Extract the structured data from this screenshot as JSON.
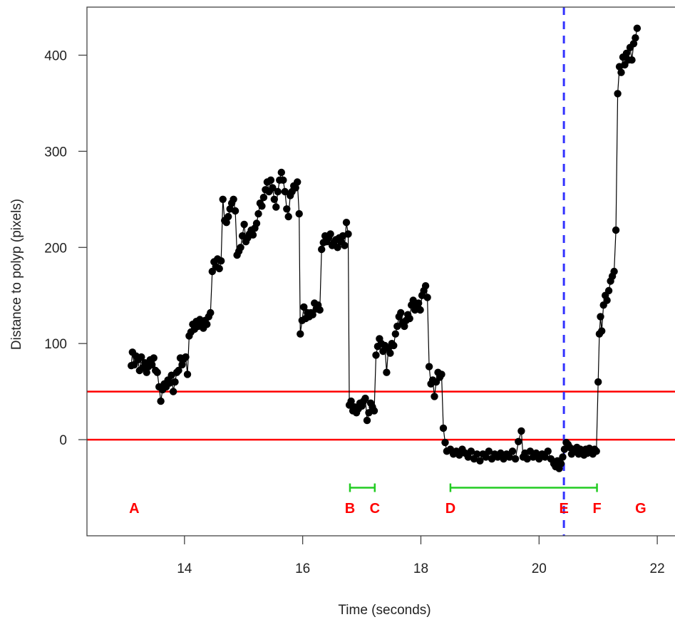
{
  "chart_data": {
    "type": "scatter",
    "title": "",
    "xlabel": "Time (seconds)",
    "ylabel": "Distance to polyp (pixels)",
    "xlim": [
      12.35,
      22.3
    ],
    "ylim": [
      -100,
      450
    ],
    "x_ticks": [
      14,
      16,
      18,
      20,
      22
    ],
    "y_ticks": [
      0,
      100,
      200,
      300,
      400
    ],
    "grid": false,
    "series": [
      {
        "style": "points-connected-by-line",
        "color": "#000000",
        "points": [
          [
            13.1,
            77
          ],
          [
            13.12,
            91
          ],
          [
            13.15,
            78
          ],
          [
            13.18,
            87
          ],
          [
            13.21,
            83
          ],
          [
            13.24,
            72
          ],
          [
            13.27,
            86
          ],
          [
            13.3,
            75
          ],
          [
            13.33,
            80
          ],
          [
            13.36,
            70
          ],
          [
            13.39,
            76
          ],
          [
            13.42,
            83
          ],
          [
            13.45,
            78
          ],
          [
            13.48,
            85
          ],
          [
            13.51,
            72
          ],
          [
            13.54,
            70
          ],
          [
            13.57,
            55
          ],
          [
            13.6,
            40
          ],
          [
            13.63,
            52
          ],
          [
            13.66,
            58
          ],
          [
            13.69,
            55
          ],
          [
            13.72,
            62
          ],
          [
            13.75,
            59
          ],
          [
            13.78,
            67
          ],
          [
            13.81,
            50
          ],
          [
            13.84,
            60
          ],
          [
            13.87,
            70
          ],
          [
            13.9,
            72
          ],
          [
            13.93,
            85
          ],
          [
            13.96,
            78
          ],
          [
            13.99,
            84
          ],
          [
            14.02,
            86
          ],
          [
            14.05,
            68
          ],
          [
            14.08,
            108
          ],
          [
            14.11,
            112
          ],
          [
            14.14,
            120
          ],
          [
            14.17,
            115
          ],
          [
            14.2,
            123
          ],
          [
            14.23,
            118
          ],
          [
            14.26,
            125
          ],
          [
            14.29,
            121
          ],
          [
            14.32,
            116
          ],
          [
            14.35,
            124
          ],
          [
            14.38,
            120
          ],
          [
            14.41,
            128
          ],
          [
            14.44,
            132
          ],
          [
            14.47,
            175
          ],
          [
            14.5,
            185
          ],
          [
            14.53,
            180
          ],
          [
            14.56,
            188
          ],
          [
            14.59,
            178
          ],
          [
            14.62,
            186
          ],
          [
            14.65,
            250
          ],
          [
            14.68,
            228
          ],
          [
            14.71,
            226
          ],
          [
            14.74,
            232
          ],
          [
            14.77,
            240
          ],
          [
            14.8,
            246
          ],
          [
            14.83,
            250
          ],
          [
            14.86,
            238
          ],
          [
            14.89,
            192
          ],
          [
            14.92,
            196
          ],
          [
            14.95,
            200
          ],
          [
            14.98,
            212
          ],
          [
            15.01,
            224
          ],
          [
            15.04,
            206
          ],
          [
            15.07,
            210
          ],
          [
            15.1,
            214
          ],
          [
            15.13,
            218
          ],
          [
            15.16,
            213
          ],
          [
            15.19,
            220
          ],
          [
            15.22,
            225
          ],
          [
            15.25,
            235
          ],
          [
            15.28,
            246
          ],
          [
            15.31,
            243
          ],
          [
            15.34,
            252
          ],
          [
            15.37,
            260
          ],
          [
            15.4,
            268
          ],
          [
            15.43,
            258
          ],
          [
            15.46,
            270
          ],
          [
            15.49,
            262
          ],
          [
            15.52,
            250
          ],
          [
            15.55,
            242
          ],
          [
            15.58,
            258
          ],
          [
            15.61,
            270
          ],
          [
            15.64,
            278
          ],
          [
            15.67,
            270
          ],
          [
            15.7,
            258
          ],
          [
            15.73,
            240
          ],
          [
            15.76,
            232
          ],
          [
            15.79,
            254
          ],
          [
            15.82,
            258
          ],
          [
            15.85,
            264
          ],
          [
            15.88,
            262
          ],
          [
            15.91,
            268
          ],
          [
            15.94,
            235
          ],
          [
            15.96,
            110
          ],
          [
            15.99,
            124
          ],
          [
            16.02,
            138
          ],
          [
            16.05,
            126
          ],
          [
            16.08,
            132
          ],
          [
            16.11,
            128
          ],
          [
            16.14,
            132
          ],
          [
            16.17,
            130
          ],
          [
            16.2,
            142
          ],
          [
            16.23,
            136
          ],
          [
            16.26,
            140
          ],
          [
            16.29,
            135
          ],
          [
            16.32,
            198
          ],
          [
            16.35,
            205
          ],
          [
            16.38,
            212
          ],
          [
            16.41,
            206
          ],
          [
            16.44,
            210
          ],
          [
            16.47,
            214
          ],
          [
            16.5,
            202
          ],
          [
            16.53,
            205
          ],
          [
            16.56,
            208
          ],
          [
            16.59,
            200
          ],
          [
            16.62,
            210
          ],
          [
            16.65,
            206
          ],
          [
            16.68,
            212
          ],
          [
            16.71,
            202
          ],
          [
            16.74,
            226
          ],
          [
            16.77,
            214
          ],
          [
            16.79,
            36
          ],
          [
            16.82,
            40
          ],
          [
            16.85,
            30
          ],
          [
            16.88,
            34
          ],
          [
            16.91,
            28
          ],
          [
            16.94,
            32
          ],
          [
            16.97,
            38
          ],
          [
            17.0,
            35
          ],
          [
            17.03,
            40
          ],
          [
            17.06,
            43
          ],
          [
            17.09,
            20
          ],
          [
            17.12,
            28
          ],
          [
            17.15,
            38
          ],
          [
            17.18,
            34
          ],
          [
            17.21,
            30
          ],
          [
            17.24,
            88
          ],
          [
            17.27,
            97
          ],
          [
            17.3,
            105
          ],
          [
            17.33,
            100
          ],
          [
            17.36,
            92
          ],
          [
            17.39,
            98
          ],
          [
            17.42,
            70
          ],
          [
            17.45,
            95
          ],
          [
            17.48,
            90
          ],
          [
            17.51,
            100
          ],
          [
            17.54,
            98
          ],
          [
            17.57,
            110
          ],
          [
            17.6,
            118
          ],
          [
            17.63,
            128
          ],
          [
            17.66,
            132
          ],
          [
            17.69,
            122
          ],
          [
            17.72,
            118
          ],
          [
            17.75,
            124
          ],
          [
            17.78,
            130
          ],
          [
            17.81,
            126
          ],
          [
            17.84,
            140
          ],
          [
            17.87,
            145
          ],
          [
            17.9,
            135
          ],
          [
            17.93,
            140
          ],
          [
            17.96,
            142
          ],
          [
            17.99,
            135
          ],
          [
            18.02,
            150
          ],
          [
            18.05,
            155
          ],
          [
            18.08,
            160
          ],
          [
            18.11,
            148
          ],
          [
            18.14,
            76
          ],
          [
            18.17,
            58
          ],
          [
            18.2,
            62
          ],
          [
            18.23,
            45
          ],
          [
            18.26,
            60
          ],
          [
            18.29,
            70
          ],
          [
            18.32,
            65
          ],
          [
            18.35,
            68
          ],
          [
            18.38,
            12
          ],
          [
            18.41,
            -3
          ],
          [
            18.44,
            -12
          ],
          [
            18.5,
            -10
          ],
          [
            18.55,
            -15
          ],
          [
            18.6,
            -12
          ],
          [
            18.65,
            -16
          ],
          [
            18.7,
            -10
          ],
          [
            18.75,
            -14
          ],
          [
            18.8,
            -18
          ],
          [
            18.85,
            -12
          ],
          [
            18.9,
            -20
          ],
          [
            18.95,
            -15
          ],
          [
            19.0,
            -22
          ],
          [
            19.05,
            -15
          ],
          [
            19.1,
            -18
          ],
          [
            19.15,
            -12
          ],
          [
            19.2,
            -20
          ],
          [
            19.25,
            -15
          ],
          [
            19.3,
            -18
          ],
          [
            19.35,
            -14
          ],
          [
            19.4,
            -20
          ],
          [
            19.45,
            -15
          ],
          [
            19.5,
            -18
          ],
          [
            19.55,
            -12
          ],
          [
            19.6,
            -20
          ],
          [
            19.65,
            -2
          ],
          [
            19.7,
            9
          ],
          [
            19.73,
            -18
          ],
          [
            19.76,
            -14
          ],
          [
            19.8,
            -20
          ],
          [
            19.85,
            -12
          ],
          [
            19.9,
            -18
          ],
          [
            19.95,
            -14
          ],
          [
            20.0,
            -20
          ],
          [
            20.05,
            -15
          ],
          [
            20.1,
            -18
          ],
          [
            20.15,
            -12
          ],
          [
            20.2,
            -20
          ],
          [
            20.25,
            -25
          ],
          [
            20.28,
            -28
          ],
          [
            20.31,
            -22
          ],
          [
            20.34,
            -30
          ],
          [
            20.37,
            -25
          ],
          [
            20.4,
            -18
          ],
          [
            20.43,
            -10
          ],
          [
            20.46,
            -3
          ],
          [
            20.49,
            -5
          ],
          [
            20.52,
            -8
          ],
          [
            20.55,
            -15
          ],
          [
            20.58,
            -10
          ],
          [
            20.61,
            -12
          ],
          [
            20.64,
            -8
          ],
          [
            20.67,
            -15
          ],
          [
            20.7,
            -10
          ],
          [
            20.73,
            -13
          ],
          [
            20.76,
            -16
          ],
          [
            20.79,
            -10
          ],
          [
            20.82,
            -14
          ],
          [
            20.85,
            -9
          ],
          [
            20.88,
            -12
          ],
          [
            20.91,
            -15
          ],
          [
            20.94,
            -10
          ],
          [
            20.97,
            -12
          ],
          [
            21.0,
            60
          ],
          [
            21.02,
            110
          ],
          [
            21.04,
            128
          ],
          [
            21.06,
            113
          ],
          [
            21.09,
            140
          ],
          [
            21.12,
            150
          ],
          [
            21.15,
            145
          ],
          [
            21.18,
            155
          ],
          [
            21.21,
            165
          ],
          [
            21.24,
            170
          ],
          [
            21.27,
            175
          ],
          [
            21.3,
            218
          ],
          [
            21.33,
            360
          ],
          [
            21.36,
            388
          ],
          [
            21.39,
            382
          ],
          [
            21.42,
            398
          ],
          [
            21.45,
            390
          ],
          [
            21.48,
            402
          ],
          [
            21.51,
            395
          ],
          [
            21.54,
            408
          ],
          [
            21.57,
            395
          ],
          [
            21.6,
            412
          ],
          [
            21.63,
            418
          ],
          [
            21.66,
            428
          ]
        ]
      }
    ],
    "reference_lines": [
      {
        "orientation": "horizontal",
        "value": 50,
        "color": "#ff0000",
        "style": "solid"
      },
      {
        "orientation": "horizontal",
        "value": 0,
        "color": "#ff0000",
        "style": "solid"
      },
      {
        "orientation": "vertical",
        "value": 20.42,
        "color": "#3333ff",
        "style": "dashed"
      }
    ],
    "intervals": [
      {
        "from": 16.8,
        "to": 17.22,
        "y": -50,
        "color": "#22cc22"
      },
      {
        "from": 18.5,
        "to": 20.98,
        "y": -50,
        "color": "#22cc22"
      }
    ],
    "annotations": [
      {
        "text": "A",
        "x": 13.15,
        "y": -71,
        "color": "#ff0000"
      },
      {
        "text": "B",
        "x": 16.8,
        "y": -71,
        "color": "#ff0000"
      },
      {
        "text": "C",
        "x": 17.22,
        "y": -71,
        "color": "#ff0000"
      },
      {
        "text": "D",
        "x": 18.5,
        "y": -71,
        "color": "#ff0000"
      },
      {
        "text": "E",
        "x": 20.42,
        "y": -71,
        "color": "#ff0000"
      },
      {
        "text": "F",
        "x": 20.98,
        "y": -71,
        "color": "#ff0000"
      },
      {
        "text": "G",
        "x": 21.72,
        "y": -71,
        "color": "#ff0000"
      }
    ]
  }
}
